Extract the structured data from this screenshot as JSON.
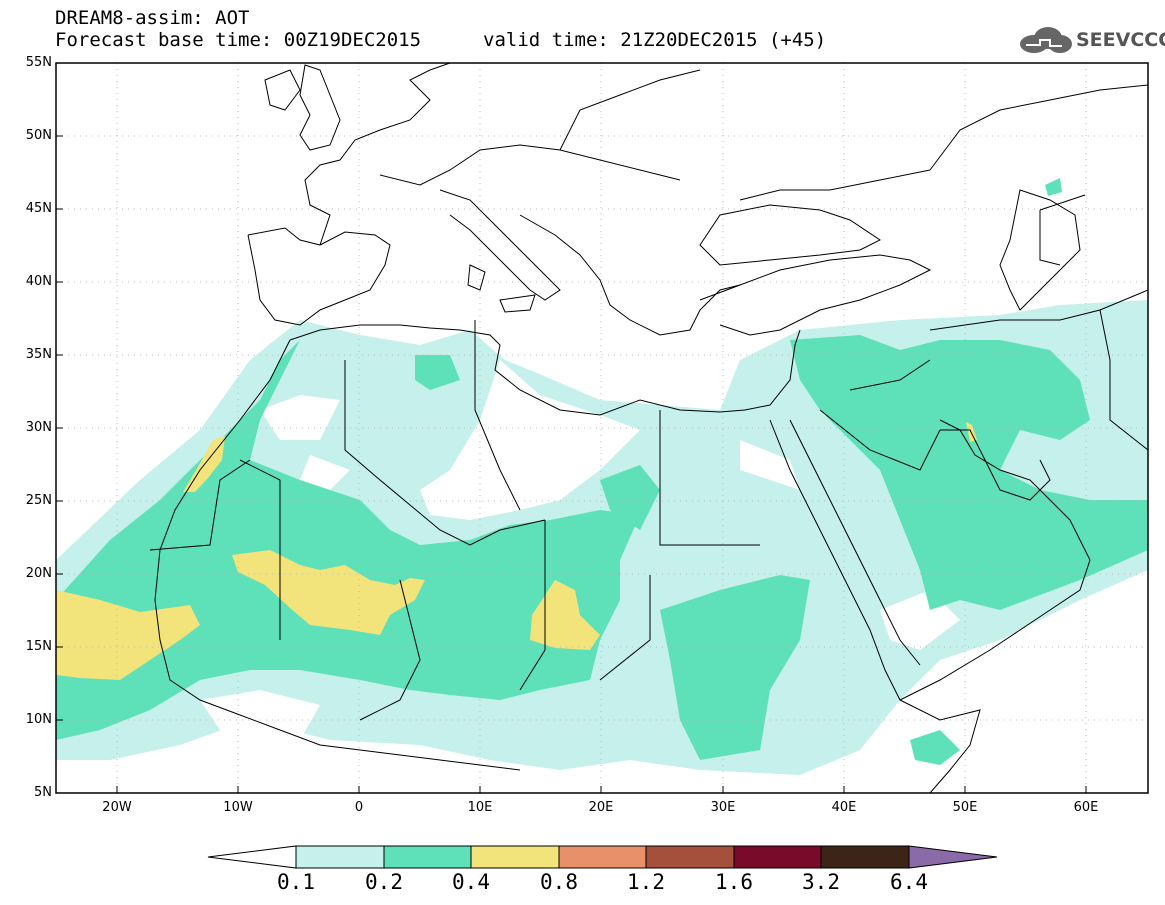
{
  "header": {
    "title_line1": "DREAM8-assim: AOT",
    "title_line2": "Forecast base time: 00Z19DEC2015",
    "valid_time": "valid time: 21Z20DEC2015 (+45)",
    "logo_text": "SEEVCCC"
  },
  "map": {
    "lat_labels": [
      "55N",
      "50N",
      "45N",
      "40N",
      "35N",
      "30N",
      "25N",
      "20N",
      "15N",
      "10N",
      "5N"
    ],
    "lon_labels": [
      "20W",
      "10W",
      "0",
      "10E",
      "20E",
      "30E",
      "40E",
      "50E",
      "60E"
    ],
    "lon_range": [
      -25,
      65
    ],
    "lat_range": [
      5,
      55
    ]
  },
  "colorbar": {
    "labels": [
      "0.1",
      "0.2",
      "0.4",
      "0.8",
      "1.2",
      "1.6",
      "3.2",
      "6.4"
    ],
    "colors": [
      "#ffffff",
      "#c5f0ec",
      "#5ee0b8",
      "#f2e47a",
      "#e8906a",
      "#a5503c",
      "#7a0a2a",
      "#3c2418",
      "#8a6aa8"
    ]
  }
}
